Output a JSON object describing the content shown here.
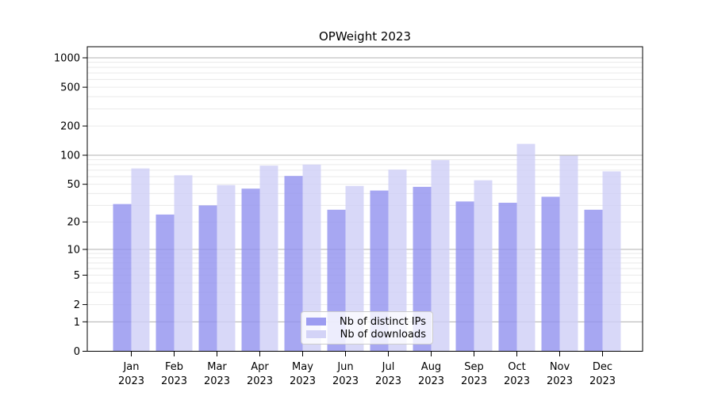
{
  "chart_data": {
    "type": "bar",
    "title": "OPWeight 2023",
    "categories": [
      "Jan",
      "Feb",
      "Mar",
      "Apr",
      "May",
      "Jun",
      "Jul",
      "Aug",
      "Sep",
      "Oct",
      "Nov",
      "Dec"
    ],
    "year_label": "2023",
    "series": [
      {
        "name": "Nb of distinct IPs",
        "color": "#9191ef",
        "values": [
          31,
          24,
          30,
          45,
          61,
          27,
          43,
          47,
          33,
          32,
          37,
          27
        ]
      },
      {
        "name": "Nb of downloads",
        "color": "#cecef6",
        "values": [
          73,
          62,
          49,
          78,
          80,
          48,
          71,
          89,
          55,
          131,
          99,
          68
        ]
      }
    ],
    "yscale": "log1p",
    "yticks": [
      0,
      1,
      2,
      5,
      10,
      20,
      50,
      100,
      200,
      500,
      1000
    ],
    "ylim": [
      0,
      1300
    ],
    "grid": true,
    "legend_position": "lower center",
    "bar_opacity": 0.8
  },
  "colors": {
    "bar_distinct_ips": "#9191ef",
    "bar_downloads": "#cecef6",
    "grid_major": "#b0b0b0",
    "grid_minor": "#eaeaea",
    "axis": "#000000",
    "legend_border": "#cccccc"
  }
}
